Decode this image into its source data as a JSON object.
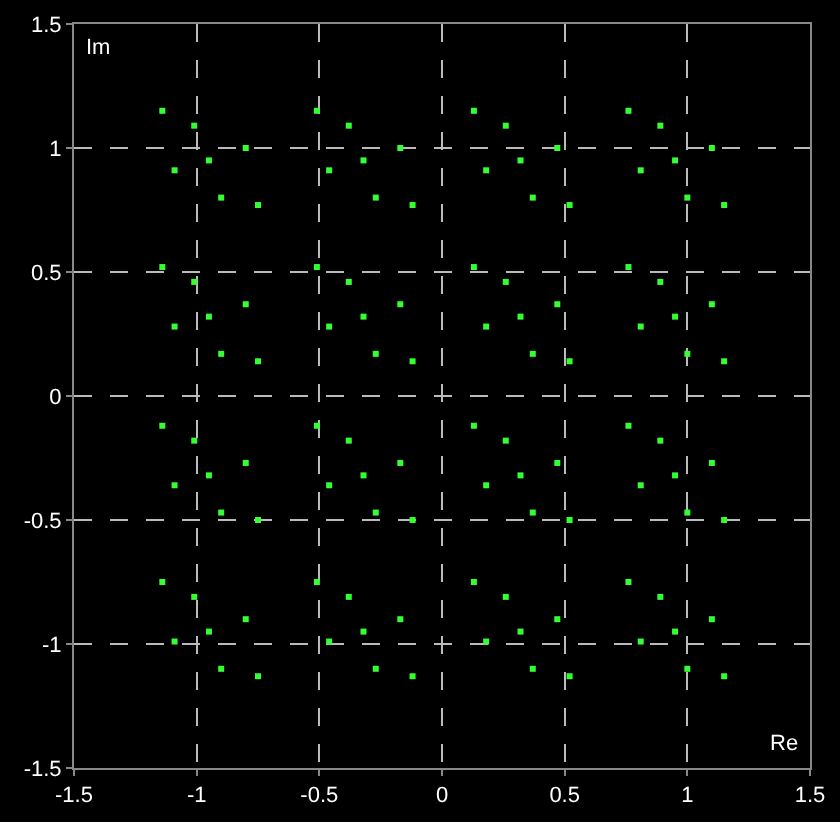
{
  "chart_data": {
    "type": "scatter",
    "xlabel": "Re",
    "ylabel": "Im",
    "marker": "square",
    "grid": true,
    "xlim": [
      -1.5,
      1.5
    ],
    "xticks": [
      -1.5,
      -1,
      -0.5,
      0,
      0.5,
      1,
      1.5
    ],
    "ylim": [
      -1.5,
      1.5
    ],
    "yticks": [
      -1.5,
      -1,
      -0.5,
      0,
      0.5,
      1,
      1.5
    ],
    "series": [
      {
        "color": "#33ff33",
        "x": [
          -0.95,
          -0.8,
          -1.09,
          -0.9,
          -1.01,
          -0.75,
          -1.14,
          -0.32,
          -0.17,
          -0.46,
          -0.27,
          -0.38,
          -0.12,
          -0.51,
          0.32,
          0.47,
          0.18,
          0.37,
          0.26,
          0.52,
          0.13,
          0.95,
          1.1,
          0.81,
          1.0,
          0.89,
          1.15,
          0.76,
          -0.95,
          -0.8,
          -1.09,
          -0.9,
          -1.01,
          -0.75,
          -1.14,
          -0.32,
          -0.17,
          -0.46,
          -0.27,
          -0.38,
          -0.12,
          -0.51,
          0.32,
          0.47,
          0.18,
          0.37,
          0.26,
          0.52,
          0.13,
          0.95,
          1.1,
          0.81,
          1.0,
          0.89,
          1.15,
          0.76,
          -0.95,
          -0.8,
          -1.09,
          -0.9,
          -1.01,
          -0.75,
          -1.14,
          -0.32,
          -0.17,
          -0.46,
          -0.27,
          -0.38,
          -0.12,
          -0.51,
          0.32,
          0.47,
          0.18,
          0.37,
          0.26,
          0.52,
          0.13,
          0.95,
          1.1,
          0.81,
          1.0,
          0.89,
          1.15,
          0.76,
          -0.95,
          -0.8,
          -1.09,
          -0.9,
          -1.01,
          -0.75,
          -1.14,
          -0.32,
          -0.17,
          -0.46,
          -0.27,
          -0.38,
          -0.12,
          -0.51,
          0.32,
          0.47,
          0.18,
          0.37,
          0.26,
          0.52,
          0.13,
          0.95,
          1.1,
          0.81,
          1.0,
          0.89,
          1.15,
          0.76
        ],
        "values": [
          0.95,
          1.0,
          0.91,
          0.8,
          1.09,
          0.77,
          1.15,
          0.95,
          1.0,
          0.91,
          0.8,
          1.09,
          0.77,
          1.15,
          0.95,
          1.0,
          0.91,
          0.8,
          1.09,
          0.77,
          1.15,
          0.95,
          1.0,
          0.91,
          0.8,
          1.09,
          0.77,
          1.15,
          0.32,
          0.37,
          0.28,
          0.17,
          0.46,
          0.14,
          0.52,
          0.32,
          0.37,
          0.28,
          0.17,
          0.46,
          0.14,
          0.52,
          0.32,
          0.37,
          0.28,
          0.17,
          0.46,
          0.14,
          0.52,
          0.32,
          0.37,
          0.28,
          0.17,
          0.46,
          0.14,
          0.52,
          -0.32,
          -0.27,
          -0.36,
          -0.47,
          -0.18,
          -0.5,
          -0.12,
          -0.32,
          -0.27,
          -0.36,
          -0.47,
          -0.18,
          -0.5,
          -0.12,
          -0.32,
          -0.27,
          -0.36,
          -0.47,
          -0.18,
          -0.5,
          -0.12,
          -0.32,
          -0.27,
          -0.36,
          -0.47,
          -0.18,
          -0.5,
          -0.12,
          -0.95,
          -0.9,
          -0.99,
          -1.1,
          -0.81,
          -1.13,
          -0.75,
          -0.95,
          -0.9,
          -0.99,
          -1.1,
          -0.81,
          -1.13,
          -0.75,
          -0.95,
          -0.9,
          -0.99,
          -1.1,
          -0.81,
          -1.13,
          -0.75,
          -0.95,
          -0.9,
          -0.99,
          -1.1,
          -0.81,
          -1.13,
          -0.75
        ]
      }
    ]
  }
}
